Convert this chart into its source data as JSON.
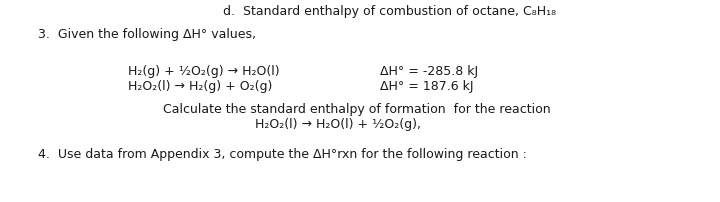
{
  "background_color": "#ffffff",
  "line_d": "d.  Standard enthalpy of combustion of octane, C₈H₁₈",
  "line_3": "3.  Given the following ΔH° values,",
  "rxn1_left": "H₂(g) + ½O₂(g) → H₂O(l)",
  "rxn1_right": "ΔH° = -285.8 kJ",
  "rxn2_left": "H₂O₂(l) → H₂(g) + O₂(g)",
  "rxn2_right": "ΔH° = 187.6 kJ",
  "calc_line1": "Calculate the standard enthalpy of formation  for the reaction",
  "calc_line2": "H₂O₂(l) → H₂O(l) + ½O₂(g),",
  "line_4": "4.  Use data from Appendix 3, compute the ΔH°rxn for the following reaction :",
  "text_color": "#1a1a1a",
  "font_size": 9.0
}
